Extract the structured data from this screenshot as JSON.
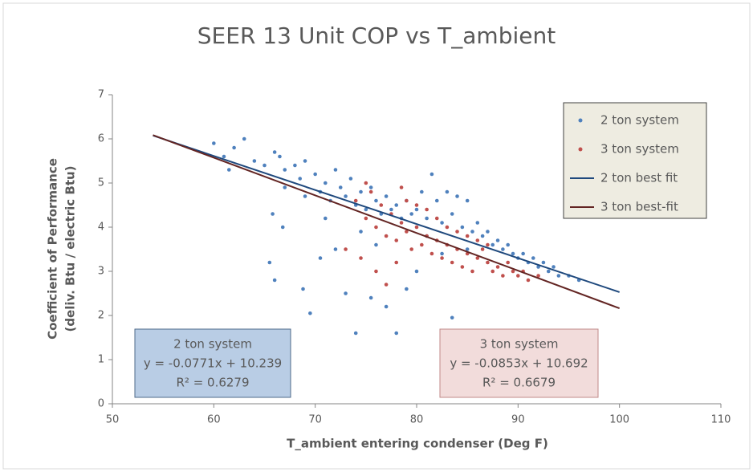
{
  "chart_data": {
    "type": "scatter",
    "title": "SEER 13 Unit COP vs T_ambient",
    "x_label": "T_ambient entering condenser (Deg F)",
    "y_label": [
      "Coefficient of Performance",
      "(deliv. Btu / electric Btu)"
    ],
    "xlim": [
      50,
      110
    ],
    "xticks": [
      50,
      60,
      70,
      80,
      90,
      100,
      110
    ],
    "ylim": [
      0,
      7
    ],
    "yticks": [
      0,
      1,
      2,
      3,
      4,
      5,
      6,
      7
    ],
    "legend": "upper right",
    "series": [
      {
        "name": "2 ton system",
        "type": "scatter",
        "color": "#4f81bd",
        "x": [
          60,
          61,
          62,
          63,
          61.5,
          64,
          65,
          66,
          66.5,
          67,
          68,
          68.5,
          69,
          70,
          70.5,
          71,
          71.5,
          72,
          72.5,
          73,
          73.5,
          74,
          74.5,
          75,
          75.5,
          76,
          76.5,
          77,
          77.5,
          78,
          78.5,
          79,
          79.5,
          80,
          80.5,
          81,
          81.5,
          82,
          82.5,
          83,
          83.5,
          84,
          84.5,
          85,
          85.5,
          86,
          86.5,
          87,
          87.5,
          88,
          88.5,
          89,
          89.5,
          90,
          90.5,
          91,
          91.5,
          92,
          92.5,
          93,
          93.5,
          94,
          95,
          96,
          65.5,
          66,
          65.8,
          66.8,
          68.8,
          69.5,
          70.5,
          72,
          73,
          74,
          75.5,
          77,
          78,
          79,
          80,
          83.5,
          76,
          74.5,
          71,
          69,
          67,
          81,
          82.5,
          85
        ],
        "values": [
          5.9,
          5.6,
          5.8,
          6.0,
          5.3,
          5.5,
          5.4,
          5.7,
          5.6,
          5.3,
          5.4,
          5.1,
          5.5,
          5.2,
          4.8,
          5.0,
          4.6,
          5.3,
          4.9,
          4.7,
          5.1,
          4.5,
          4.8,
          4.4,
          4.9,
          4.6,
          4.3,
          4.7,
          4.4,
          4.5,
          4.2,
          4.6,
          4.3,
          4.4,
          4.8,
          4.2,
          5.2,
          4.6,
          4.1,
          4.8,
          4.3,
          4.7,
          4.0,
          4.6,
          3.9,
          4.1,
          3.8,
          3.9,
          3.6,
          3.7,
          3.5,
          3.6,
          3.4,
          3.3,
          3.4,
          3.2,
          3.3,
          3.1,
          3.2,
          3.0,
          3.1,
          2.9,
          2.9,
          2.8,
          3.2,
          2.8,
          4.3,
          4.0,
          2.6,
          2.05,
          3.3,
          3.5,
          2.5,
          1.6,
          2.4,
          2.2,
          1.6,
          2.6,
          3.0,
          1.95,
          3.6,
          3.9,
          4.2,
          4.7,
          4.9,
          3.8,
          3.4,
          3.5
        ]
      },
      {
        "name": "3 ton system",
        "type": "scatter",
        "color": "#c0504d",
        "x": [
          74,
          75,
          75.5,
          76,
          76.5,
          77,
          77.5,
          78,
          78.5,
          79,
          79.5,
          80,
          80.5,
          81,
          81.5,
          82,
          82.5,
          83,
          83.5,
          84,
          84.5,
          85,
          85.5,
          86,
          86.5,
          87,
          87.5,
          88,
          88.5,
          89,
          89.5,
          90,
          90.5,
          91,
          92,
          73,
          74.5,
          76,
          77,
          78,
          79,
          80,
          81,
          82,
          83,
          84,
          85,
          86,
          87,
          75,
          78.5
        ],
        "values": [
          4.6,
          4.2,
          4.8,
          4.0,
          4.5,
          3.8,
          4.3,
          3.7,
          4.1,
          3.9,
          3.5,
          4.0,
          3.6,
          3.8,
          3.4,
          3.7,
          3.3,
          3.6,
          3.2,
          3.5,
          3.1,
          3.4,
          3.0,
          3.3,
          3.5,
          3.2,
          3.0,
          3.1,
          2.9,
          3.2,
          3.0,
          2.9,
          3.0,
          2.8,
          2.9,
          3.5,
          3.3,
          3.0,
          2.7,
          3.2,
          4.6,
          4.5,
          4.4,
          4.2,
          4.0,
          3.9,
          3.8,
          3.7,
          3.6,
          5.0,
          4.9
        ]
      },
      {
        "name": "2 ton best fit",
        "type": "line",
        "color": "#1f497d",
        "x": [
          54,
          100
        ],
        "values": [
          6.0756,
          2.529
        ]
      },
      {
        "name": "3 ton best-fit",
        "type": "line",
        "color": "#632523",
        "x": [
          54,
          100
        ],
        "values": [
          6.0858,
          2.162
        ]
      }
    ],
    "annotations": [
      {
        "lines": [
          "2 ton system",
          "y = -0.0771x + 10.239",
          "R² = 0.6279"
        ],
        "color": "#b9cde5"
      },
      {
        "lines": [
          "3 ton system",
          "y = -0.0853x + 10.692",
          "R² = 0.6679"
        ],
        "color": "#f2dcdb"
      }
    ]
  }
}
